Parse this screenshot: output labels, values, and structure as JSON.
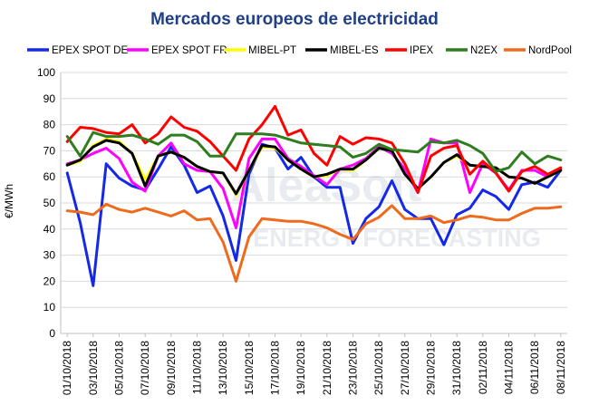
{
  "chart_data": {
    "type": "line",
    "title": "Mercados europeos de electricidad",
    "ylabel": "€/MWh",
    "xlabel": "",
    "ylim": [
      0,
      100
    ],
    "yticks": [
      0,
      10,
      20,
      30,
      40,
      50,
      60,
      70,
      80,
      90,
      100
    ],
    "grid": true,
    "legend_position": "top",
    "watermark": {
      "line1": "AleaSoft",
      "line2": "ENERGY FORECASTING"
    },
    "x": [
      "01/10/2018",
      "02/10/2018",
      "03/10/2018",
      "04/10/2018",
      "05/10/2018",
      "06/10/2018",
      "07/10/2018",
      "08/10/2018",
      "09/10/2018",
      "10/10/2018",
      "11/10/2018",
      "12/10/2018",
      "13/10/2018",
      "14/10/2018",
      "15/10/2018",
      "16/10/2018",
      "17/10/2018",
      "18/10/2018",
      "19/10/2018",
      "20/10/2018",
      "21/10/2018",
      "22/10/2018",
      "23/10/2018",
      "24/10/2018",
      "25/10/2018",
      "26/10/2018",
      "27/10/2018",
      "28/10/2018",
      "29/10/2018",
      "30/10/2018",
      "31/10/2018",
      "01/11/2018",
      "02/11/2018",
      "03/11/2018",
      "04/11/2018",
      "05/11/2018",
      "06/11/2018",
      "07/11/2018",
      "08/11/2018"
    ],
    "tick_labels": [
      "01/10/2018",
      "03/10/2018",
      "05/10/2018",
      "07/10/2018",
      "09/10/2018",
      "11/10/2018",
      "13/10/2018",
      "15/10/2018",
      "17/10/2018",
      "19/10/2018",
      "21/10/2018",
      "23/10/2018",
      "25/10/2018",
      "27/10/2018",
      "29/10/2018",
      "31/10/2018",
      "02/11/2018",
      "04/11/2018",
      "06/11/2018",
      "08/11/2018"
    ],
    "series": [
      {
        "name": "EPEX SPOT DE",
        "color": "#1428e8",
        "values": [
          61.5,
          42.5,
          18.3,
          65.0,
          59.5,
          56.5,
          55.0,
          63.0,
          71.5,
          64.5,
          54.0,
          56.5,
          45.0,
          28.0,
          61.0,
          72.5,
          71.0,
          63.0,
          67.5,
          60.0,
          56.0,
          56.0,
          34.5,
          44.0,
          48.5,
          58.5,
          47.5,
          44.0,
          44.0,
          34.0,
          45.5,
          48.0,
          55.0,
          52.5,
          47.5,
          57.0,
          58.0,
          56.0,
          62.5
        ]
      },
      {
        "name": "EPEX SPOT FR",
        "color": "#ff00ff",
        "values": [
          65.0,
          66.5,
          69.0,
          71.0,
          67.0,
          58.0,
          54.5,
          68.0,
          73.0,
          65.0,
          62.5,
          62.0,
          55.5,
          40.5,
          67.0,
          74.5,
          74.5,
          67.0,
          64.0,
          60.5,
          57.0,
          63.0,
          64.5,
          67.0,
          71.5,
          69.0,
          63.0,
          54.0,
          74.5,
          73.0,
          73.0,
          54.0,
          65.0,
          61.5,
          55.0,
          62.5,
          62.5,
          60.0,
          63.0
        ]
      },
      {
        "name": "MIBEL-PT",
        "color": "#ffff00",
        "values": [
          64.5,
          66.0,
          72.0,
          74.5,
          73.5,
          69.0,
          59.0,
          68.0,
          69.5,
          67.5,
          64.0,
          62.0,
          61.5,
          53.0,
          62.5,
          71.5,
          71.0,
          66.5,
          63.0,
          60.0,
          60.5,
          63.0,
          62.5,
          66.5,
          71.0,
          70.0,
          61.0,
          55.5,
          60.0,
          65.5,
          68.0,
          64.5,
          64.0,
          63.5,
          60.0,
          59.5,
          57.5,
          60.0,
          62.5
        ]
      },
      {
        "name": "MIBEL-ES",
        "color": "#000000",
        "values": [
          64.5,
          66.5,
          71.5,
          74.0,
          73.0,
          69.0,
          56.5,
          68.0,
          69.5,
          67.5,
          64.0,
          62.0,
          61.5,
          53.5,
          62.5,
          72.0,
          71.5,
          66.5,
          63.0,
          60.0,
          61.0,
          63.0,
          63.0,
          66.5,
          71.0,
          70.0,
          61.0,
          55.5,
          60.0,
          65.5,
          68.5,
          64.5,
          64.0,
          63.5,
          60.0,
          59.5,
          57.5,
          60.0,
          62.5
        ]
      },
      {
        "name": "IPEX",
        "color": "#ff0000",
        "values": [
          73.5,
          79.0,
          78.5,
          77.0,
          76.5,
          80.0,
          73.0,
          76.5,
          83.0,
          79.0,
          77.5,
          73.5,
          68.0,
          62.5,
          74.5,
          80.0,
          87.0,
          76.0,
          78.0,
          69.0,
          64.5,
          75.5,
          72.5,
          75.0,
          74.5,
          73.0,
          65.0,
          54.0,
          68.0,
          71.0,
          72.0,
          61.0,
          66.0,
          61.5,
          54.5,
          62.0,
          64.0,
          61.0,
          63.5
        ]
      },
      {
        "name": "N2EX",
        "color": "#2e7d1e",
        "values": [
          75.5,
          68.0,
          77.0,
          75.5,
          75.5,
          76.0,
          74.5,
          72.5,
          76.0,
          76.0,
          73.5,
          68.0,
          68.0,
          76.5,
          76.5,
          76.5,
          76.0,
          74.5,
          73.0,
          72.5,
          72.0,
          71.5,
          67.5,
          69.0,
          72.5,
          70.5,
          70.0,
          69.5,
          73.5,
          73.0,
          74.0,
          72.0,
          69.0,
          62.0,
          63.5,
          69.5,
          65.0,
          68.0,
          66.5
        ]
      },
      {
        "name": "NordPool",
        "color": "#ee6b1e",
        "values": [
          47.0,
          46.5,
          45.5,
          49.5,
          47.5,
          46.5,
          48.0,
          46.5,
          45.0,
          47.0,
          43.5,
          44.0,
          35.0,
          20.0,
          37.0,
          44.0,
          43.5,
          43.0,
          43.0,
          42.0,
          40.5,
          38.0,
          36.0,
          42.0,
          44.5,
          49.0,
          44.0,
          44.0,
          45.0,
          42.5,
          43.5,
          45.0,
          44.5,
          43.5,
          43.5,
          46.0,
          48.0,
          48.0,
          48.5
        ]
      }
    ]
  }
}
